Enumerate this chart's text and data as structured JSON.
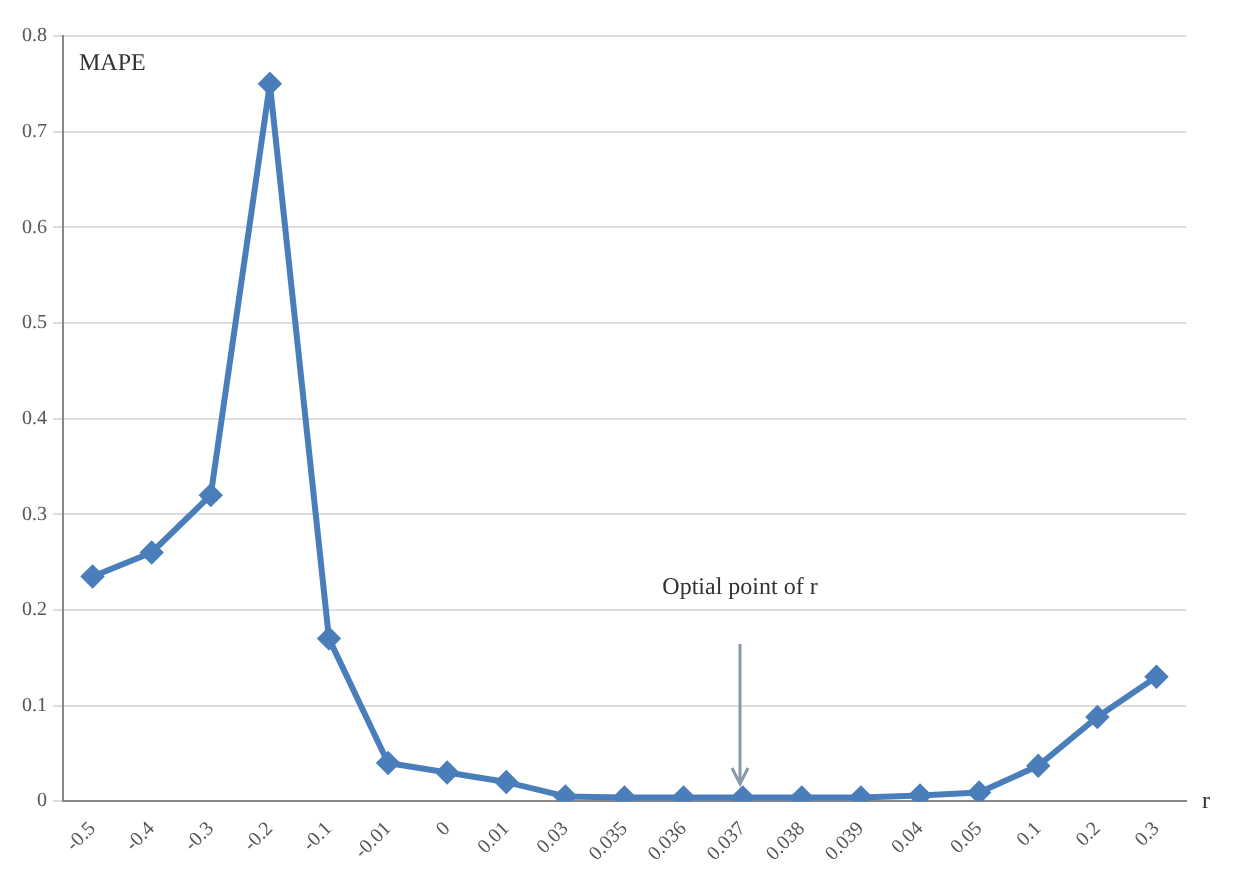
{
  "chart_data": {
    "type": "line",
    "ylabel": "MAPE",
    "xlabel": "r",
    "categories": [
      "-0.5",
      "-0.4",
      "-0.3",
      "-0.2",
      "-0.1",
      "-0.01",
      "0",
      "0.01",
      "0.03",
      "0.035",
      "0.036",
      "0.037",
      "0.038",
      "0.039",
      "0.04",
      "0.05",
      "0.1",
      "0.2",
      "0.3"
    ],
    "series": [
      {
        "color": "#4a7ebb",
        "values": [
          0.235,
          0.26,
          0.32,
          0.75,
          0.17,
          0.04,
          0.03,
          0.02,
          0.005,
          0.004,
          0.004,
          0.004,
          0.004,
          0.004,
          0.006,
          0.009,
          0.037,
          0.088,
          0.13
        ]
      }
    ],
    "ylim": [
      0,
      0.8
    ],
    "yticks": [
      0,
      0.1,
      0.2,
      0.3,
      0.4,
      0.5,
      0.6,
      0.7,
      0.8
    ],
    "grid": "y",
    "legend": false,
    "marker": "diamond",
    "line_style": "solid",
    "annotations": [
      "Optial point of r"
    ]
  }
}
